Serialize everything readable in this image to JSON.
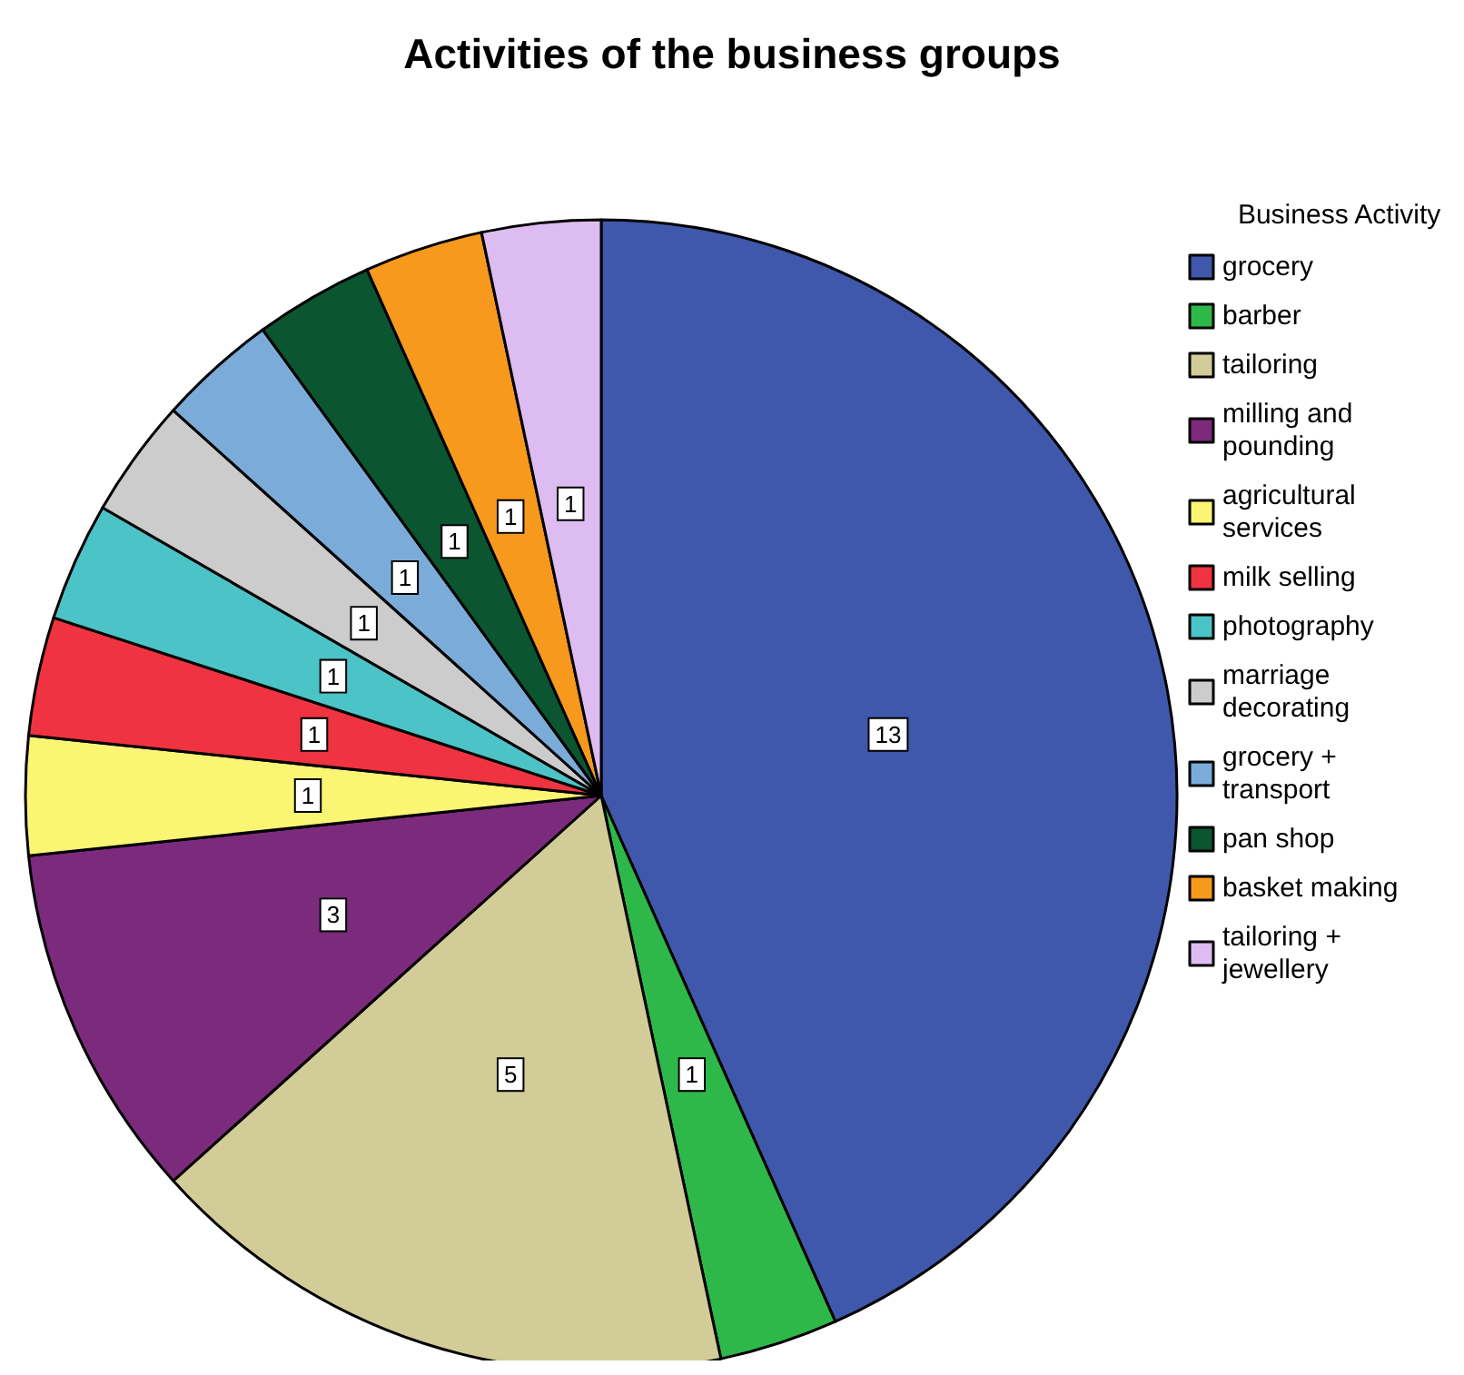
{
  "chart_data": {
    "type": "pie",
    "title": "Activities of the business groups",
    "legend_title": "Business Activity",
    "categories": [
      "grocery",
      "barber",
      "tailoring",
      "milling and pounding",
      "agricultural services",
      "milk selling",
      "photography",
      "marriage decorating",
      "grocery + transport",
      "pan shop",
      "basket making",
      "tailoring + jewellery"
    ],
    "values": [
      13,
      1,
      5,
      3,
      1,
      1,
      1,
      1,
      1,
      1,
      1,
      1
    ],
    "colors": [
      "#3f58ab",
      "#2fb84a",
      "#d2cc98",
      "#7b2a7c",
      "#faf573",
      "#ef3340",
      "#4cc3c6",
      "#cccccc",
      "#7bacd9",
      "#0b5530",
      "#f7991d",
      "#ddbcf1"
    ],
    "data_labels": true,
    "legend": "right"
  }
}
